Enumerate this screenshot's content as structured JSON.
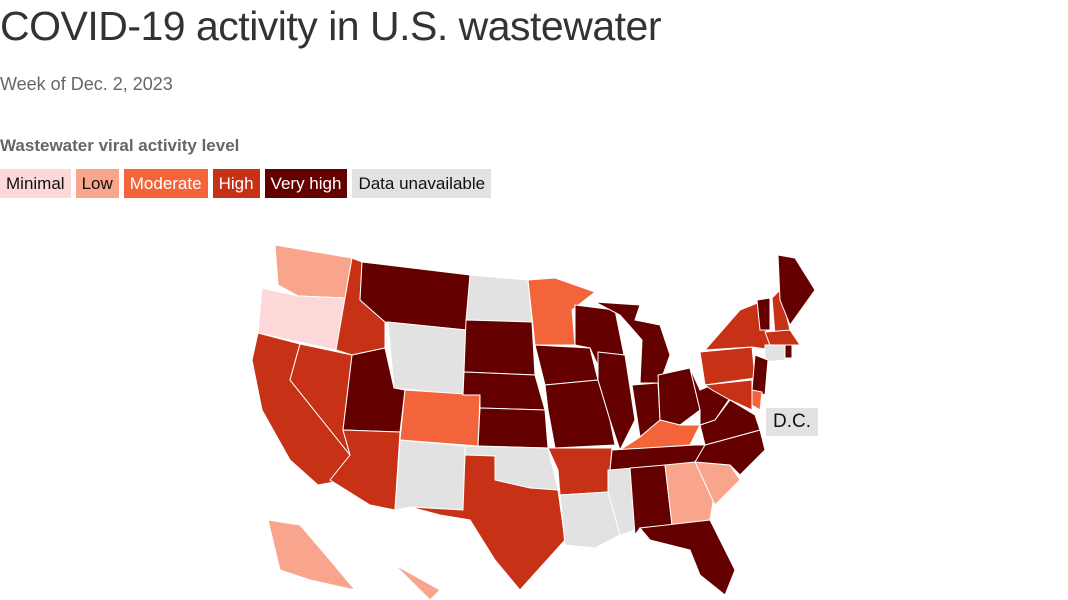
{
  "title": "COVID-19 activity in U.S. wastewater",
  "subtitle": "Week of Dec. 2, 2023",
  "legend": {
    "title": "Wastewater viral activity level",
    "items": [
      {
        "key": "minimal",
        "label": "Minimal",
        "color": "#fdd8d8",
        "text": "#111"
      },
      {
        "key": "low",
        "label": "Low",
        "color": "#f9a58e",
        "text": "#111"
      },
      {
        "key": "moderate",
        "label": "Moderate",
        "color": "#f4643a",
        "text": "#fff"
      },
      {
        "key": "high",
        "label": "High",
        "color": "#c73216",
        "text": "#fff"
      },
      {
        "key": "very_high",
        "label": "Very high",
        "color": "#650000",
        "text": "#fff"
      },
      {
        "key": "unavailable",
        "label": "Data unavailable",
        "color": "#e2e2e2",
        "text": "#111"
      }
    ]
  },
  "dc_label": "D.C.",
  "states": {
    "WA": "low",
    "OR": "minimal",
    "CA": "high",
    "NV": "high",
    "ID": "high",
    "MT": "very_high",
    "WY": "unavailable",
    "UT": "very_high",
    "AZ": "high",
    "CO": "moderate",
    "NM": "unavailable",
    "ND": "unavailable",
    "SD": "very_high",
    "NE": "very_high",
    "KS": "very_high",
    "OK": "unavailable",
    "TX": "high",
    "MN": "moderate",
    "IA": "very_high",
    "MO": "very_high",
    "AR": "high",
    "LA": "unavailable",
    "MS": "unavailable",
    "WI": "very_high",
    "IL": "very_high",
    "MI": "very_high",
    "IN": "very_high",
    "OH": "very_high",
    "KY": "moderate",
    "TN": "very_high",
    "AL": "very_high",
    "GA": "low",
    "FL": "very_high",
    "SC": "low",
    "NC": "very_high",
    "VA": "very_high",
    "WV": "very_high",
    "PA": "high",
    "NY": "high",
    "VT": "very_high",
    "NH": "high",
    "ME": "very_high",
    "MA": "high",
    "CT": "unavailable",
    "RI": "very_high",
    "NJ": "very_high",
    "DE": "moderate",
    "MD": "high",
    "AK": "low",
    "HI": "low"
  }
}
